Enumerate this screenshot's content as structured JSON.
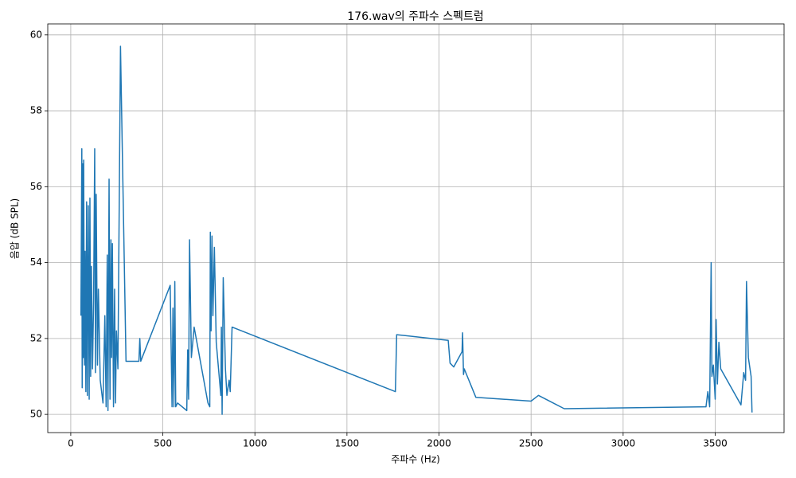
{
  "chart_data": {
    "type": "line",
    "title": "176.wav의 주파수 스펙트럼",
    "x_label": "주파수 (Hz)",
    "y_label": "음압 (dB SPL)",
    "x": [
      55,
      58,
      60,
      62,
      65,
      68,
      70,
      74,
      78,
      82,
      86,
      90,
      95,
      100,
      104,
      108,
      112,
      118,
      124,
      130,
      134,
      138,
      145,
      150,
      160,
      175,
      185,
      192,
      198,
      202,
      208,
      213,
      218,
      222,
      226,
      232,
      238,
      243,
      248,
      256,
      270,
      300,
      370,
      375,
      380,
      540,
      550,
      555,
      560,
      565,
      570,
      580,
      630,
      635,
      640,
      645,
      655,
      670,
      700,
      745,
      755,
      758,
      762,
      767,
      772,
      780,
      790,
      815,
      818,
      822,
      828,
      840,
      848,
      860,
      866,
      876,
      1763,
      1770,
      2050,
      2060,
      2080,
      2125,
      2128,
      2133,
      2137,
      2200,
      2500,
      2540,
      2680,
      3450,
      3460,
      3470,
      3478,
      3482,
      3490,
      3500,
      3505,
      3512,
      3520,
      3530,
      3640,
      3655,
      3665,
      3670,
      3680,
      3695,
      3700
    ],
    "series": [
      {
        "name": "spectrum",
        "color": "#1f77b4",
        "values": [
          52.6,
          55.1,
          57.0,
          50.7,
          56.6,
          51.5,
          56.7,
          51.3,
          54.3,
          50.6,
          55.6,
          50.5,
          55.5,
          50.4,
          55.7,
          51.0,
          53.9,
          51.2,
          53.0,
          57.0,
          51.1,
          55.8,
          51.3,
          53.3,
          50.9,
          50.3,
          52.6,
          50.2,
          54.2,
          50.1,
          56.2,
          50.4,
          54.6,
          51.5,
          54.5,
          50.2,
          53.3,
          50.3,
          52.2,
          51.2,
          59.7,
          51.4,
          51.4,
          52.0,
          51.4,
          53.4,
          50.2,
          52.8,
          50.2,
          53.5,
          50.2,
          50.3,
          50.1,
          51.7,
          50.4,
          54.6,
          51.5,
          52.3,
          51.5,
          50.3,
          50.2,
          54.8,
          52.2,
          54.7,
          52.6,
          54.4,
          51.9,
          50.5,
          52.3,
          50.0,
          53.6,
          51.2,
          50.5,
          50.9,
          50.6,
          52.3,
          50.6,
          52.1,
          51.95,
          51.35,
          51.25,
          51.65,
          52.15,
          51.05,
          51.2,
          50.45,
          50.35,
          50.5,
          50.15,
          50.2,
          50.6,
          50.2,
          54.0,
          51.0,
          51.3,
          50.4,
          52.5,
          50.8,
          51.9,
          51.2,
          50.25,
          51.1,
          50.9,
          53.5,
          51.5,
          51.0,
          50.05
        ]
      }
    ],
    "xlim": [
      -125,
      3874
    ],
    "ylim": [
      49.52,
      60.29
    ],
    "xticks": [
      0,
      500,
      1000,
      1500,
      2000,
      2500,
      3000,
      3500
    ],
    "yticks": [
      50,
      52,
      54,
      56,
      58,
      60
    ],
    "grid": true
  }
}
